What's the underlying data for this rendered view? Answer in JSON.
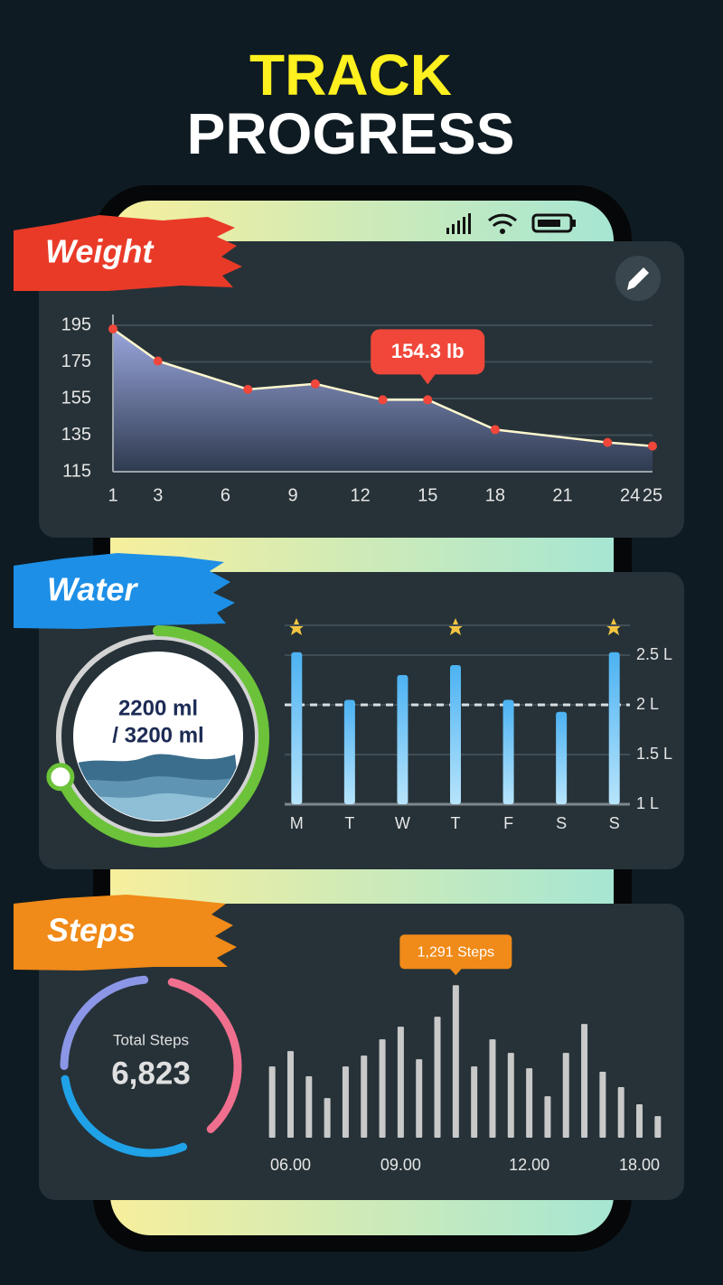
{
  "header": {
    "line1": "TRACK",
    "line2": "PROGRESS"
  },
  "chart_data": [
    {
      "type": "line",
      "title": "Weight",
      "x": [
        1,
        3,
        7,
        10,
        13,
        15,
        18,
        23,
        25
      ],
      "values": [
        193,
        175.5,
        160,
        163,
        154.3,
        154.3,
        138,
        131,
        129
      ],
      "value_labels": [
        null,
        null,
        null,
        null,
        null,
        "154.3 lb",
        null,
        null,
        null
      ],
      "xlim": [
        1,
        25
      ],
      "xticks": [
        1,
        3,
        6,
        9,
        12,
        15,
        18,
        21,
        24,
        25
      ],
      "ylim": [
        115,
        195
      ],
      "yticks": [
        195,
        175,
        155,
        135,
        115
      ],
      "color": "#f0473a",
      "grid": true
    },
    {
      "type": "bar",
      "title": "Water",
      "categories": [
        "M",
        "T",
        "W",
        "T",
        "F",
        "S",
        "S"
      ],
      "values": [
        2.53,
        2.05,
        2.3,
        2.4,
        2.05,
        1.93,
        2.53
      ],
      "ylim": [
        1,
        2.8
      ],
      "yticks": [
        {
          "value": 1,
          "label": "1 L"
        },
        {
          "value": 1.5,
          "label": "1.5 L"
        },
        {
          "value": 2,
          "label": "2 L"
        },
        {
          "value": 2.5,
          "label": "2.5 L"
        }
      ],
      "target": 2,
      "color": "#5bb8f2",
      "grid": true
    },
    {
      "type": "gauge",
      "value": 2200,
      "max": 3200,
      "value_label": "2200 ml",
      "max_label": "/ 3200 ml",
      "color": "#6cc33a"
    },
    {
      "type": "summary",
      "title": "Steps",
      "label": "Total Steps",
      "value": 6823,
      "value_label": "6,823"
    },
    {
      "type": "bar",
      "categories": [
        null,
        "06.00",
        null,
        null,
        null,
        null,
        null,
        "09.00",
        null,
        null,
        null,
        null,
        null,
        null,
        "12.00",
        null,
        null,
        null,
        null,
        null,
        "18.00",
        null
      ],
      "values": [
        603,
        733,
        520,
        336,
        603,
        695,
        833,
        940,
        665,
        1024,
        1291,
        603,
        833,
        718,
        588,
        351,
        718,
        963,
        558,
        428,
        283,
        183
      ],
      "value_labels": [
        null,
        null,
        null,
        null,
        null,
        null,
        null,
        null,
        null,
        null,
        "1,291 Steps",
        null,
        null,
        null,
        null,
        null,
        null,
        null,
        null,
        null,
        null,
        null
      ],
      "ylim": [
        0,
        1400
      ],
      "color": "#c9c9c9"
    }
  ]
}
